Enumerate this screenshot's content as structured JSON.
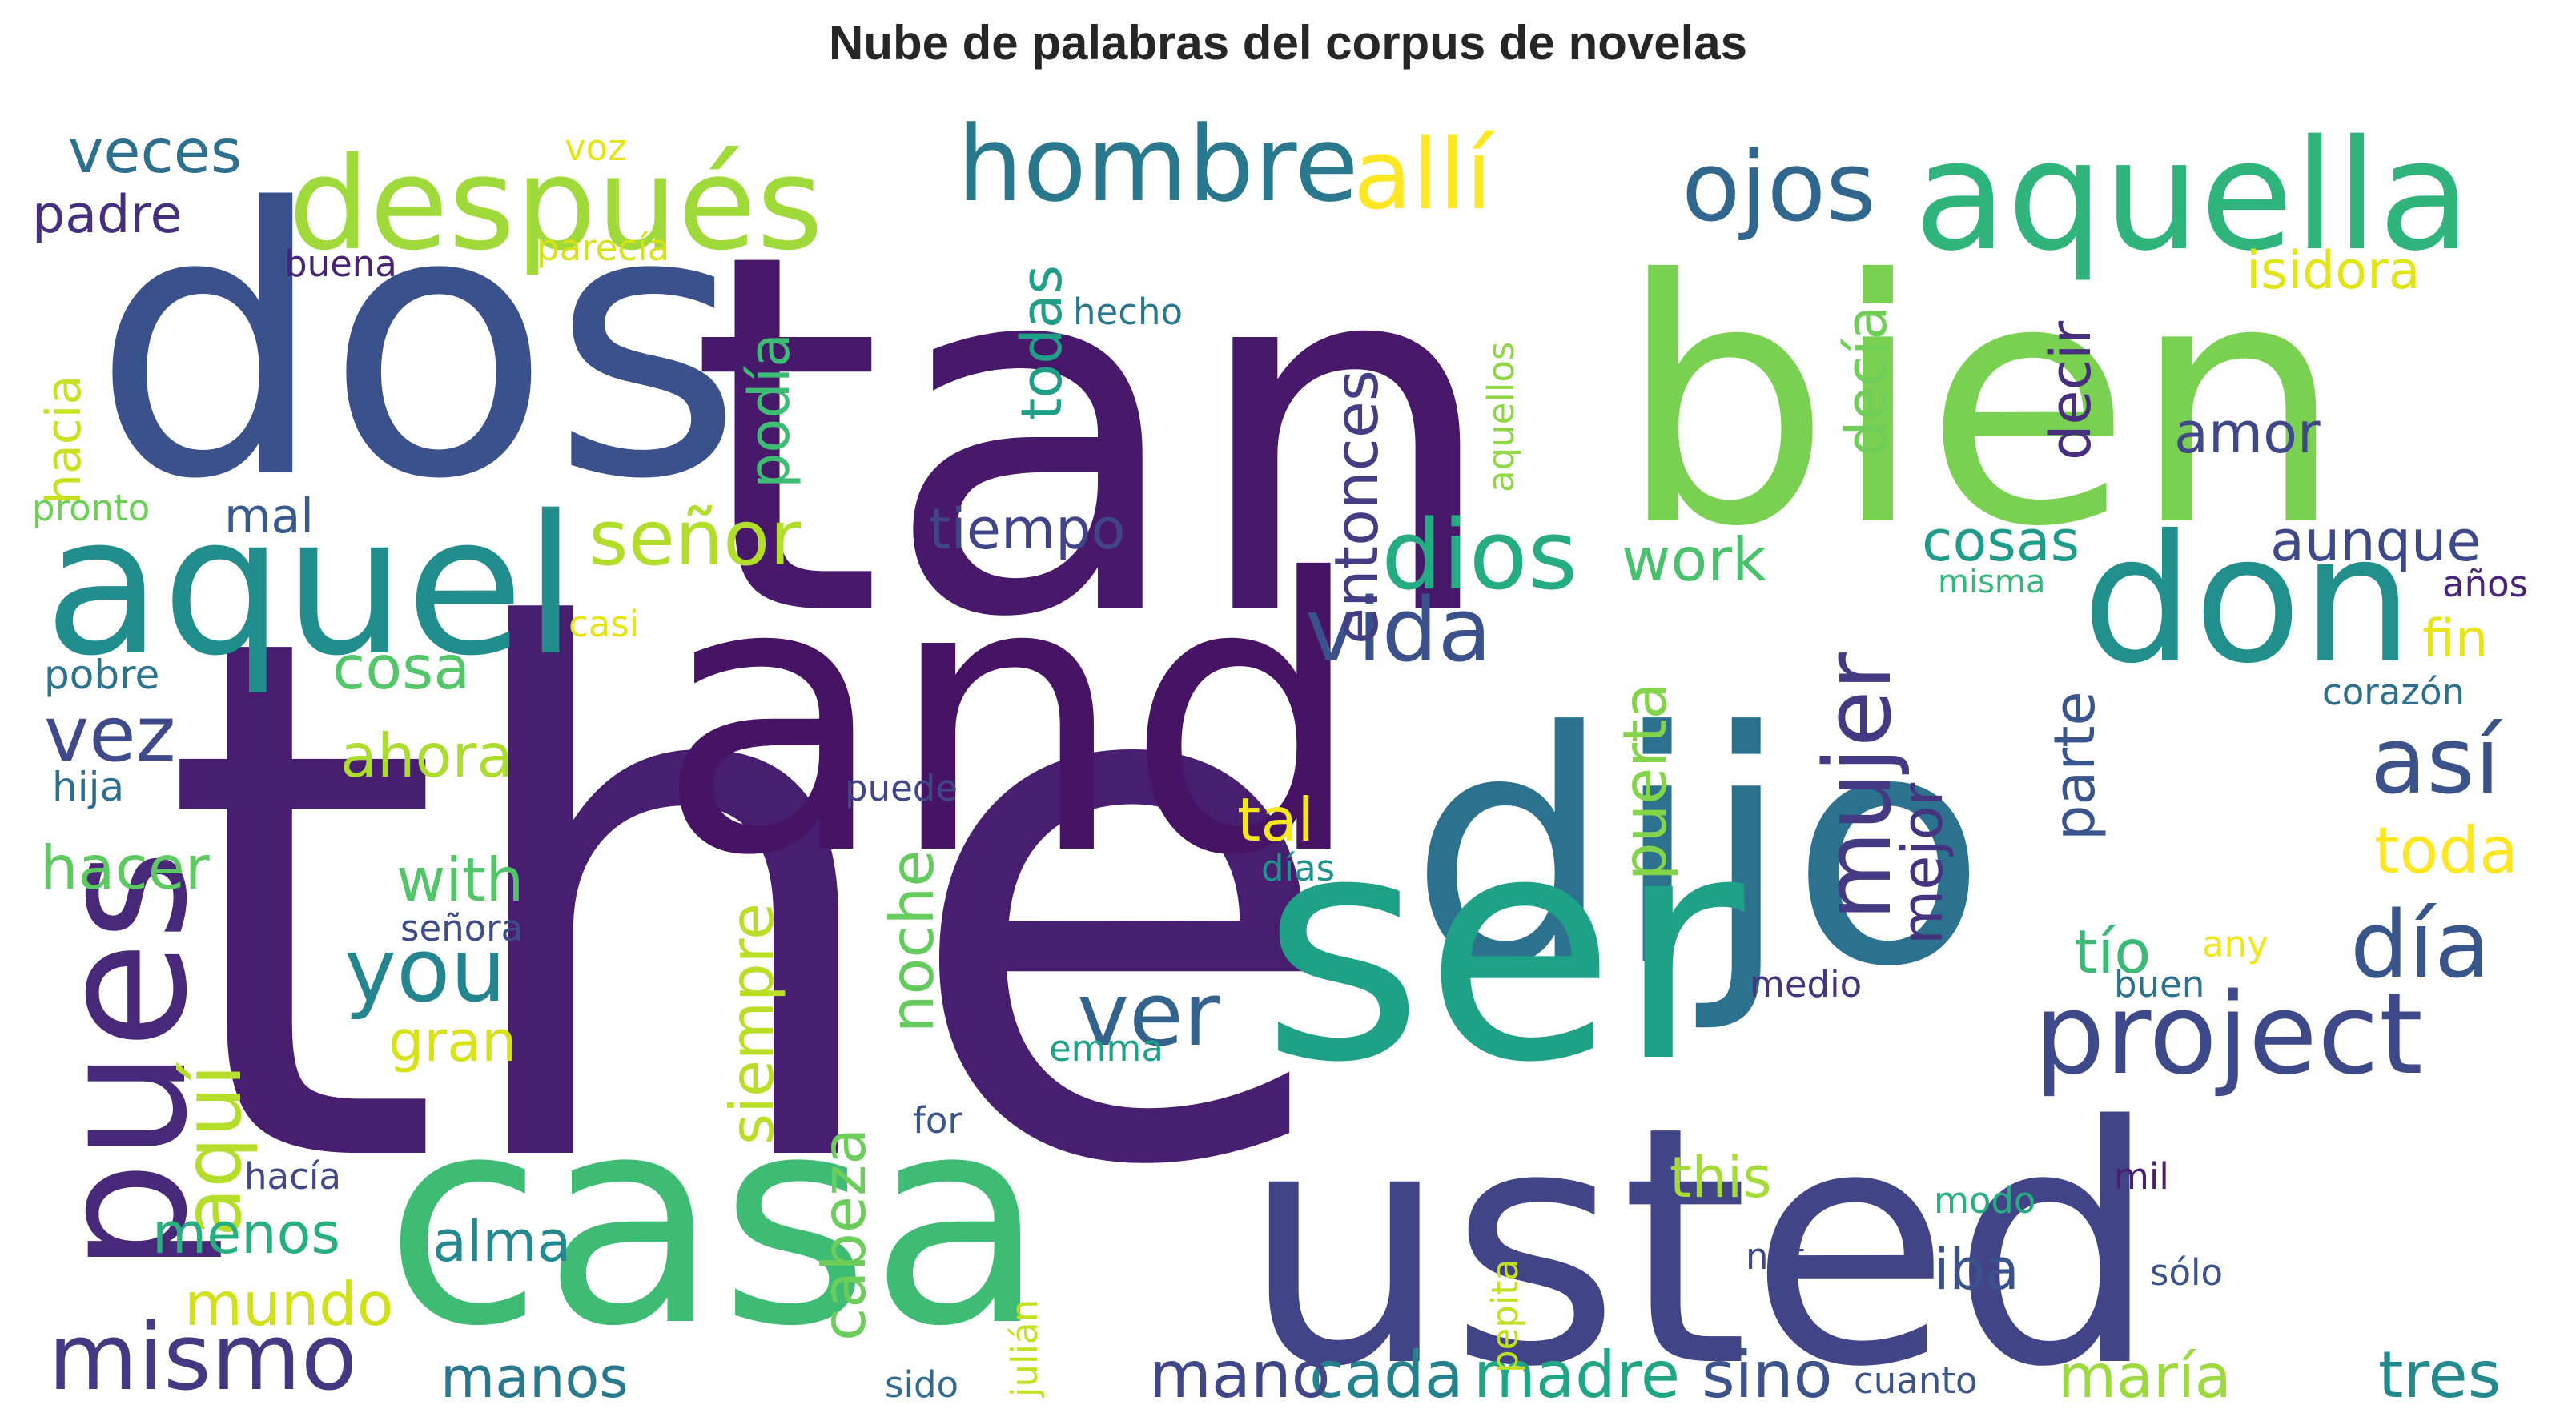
{
  "title": "Nube de palabras del corpus de novelas",
  "words": [
    {
      "text": "the",
      "color": "#481f70"
    },
    {
      "text": "tan",
      "color": "#48186a"
    },
    {
      "text": "dos",
      "color": "#3b518b"
    },
    {
      "text": "bien",
      "color": "#7ad151"
    },
    {
      "text": "and",
      "color": "#471365"
    },
    {
      "text": "dijo",
      "color": "#2c728e"
    },
    {
      "text": "usted",
      "color": "#414487"
    },
    {
      "text": "casa",
      "color": "#3fbc73"
    },
    {
      "text": "ser",
      "color": "#1fa187"
    },
    {
      "text": "aquel",
      "color": "#228d8d"
    },
    {
      "text": "aquella",
      "color": "#2fb47c"
    },
    {
      "text": "pues",
      "color": "#482878"
    },
    {
      "text": "don",
      "color": "#21908d"
    },
    {
      "text": "después",
      "color": "#9fda3a"
    },
    {
      "text": "project",
      "color": "#3e4989"
    },
    {
      "text": "hombre",
      "color": "#2a788e"
    },
    {
      "text": "ojos",
      "color": "#31668e"
    },
    {
      "text": "mujer",
      "color": "#443a83"
    },
    {
      "text": "allí",
      "color": "#fde725"
    },
    {
      "text": "día",
      "color": "#39568c"
    },
    {
      "text": "dios",
      "color": "#25ac82"
    },
    {
      "text": "vida",
      "color": "#3b518b"
    },
    {
      "text": "ver",
      "color": "#33638d"
    },
    {
      "text": "you",
      "color": "#25858e"
    },
    {
      "text": "mismo",
      "color": "#453882"
    },
    {
      "text": "así",
      "color": "#3b528b"
    },
    {
      "text": "aquí",
      "color": "#b5de2b"
    },
    {
      "text": "señor",
      "color": "#b2dd2d"
    },
    {
      "text": "vez",
      "color": "#3e4a89"
    },
    {
      "text": "cabeza",
      "color": "#6ccd5a"
    },
    {
      "text": "madre",
      "color": "#21a685"
    },
    {
      "text": "cada",
      "color": "#26818e"
    },
    {
      "text": "mano",
      "color": "#3f4788"
    },
    {
      "text": "sino",
      "color": "#3b528b"
    },
    {
      "text": "tres",
      "color": "#238a8d"
    },
    {
      "text": "maría",
      "color": "#9bd93c"
    },
    {
      "text": "entonces",
      "color": "#433d84"
    },
    {
      "text": "puerta",
      "color": "#84d44b"
    },
    {
      "text": "noche",
      "color": "#65cb5e"
    },
    {
      "text": "siempre",
      "color": "#bade28"
    },
    {
      "text": "mejor",
      "color": "#46337f"
    },
    {
      "text": "parte",
      "color": "#3a548c"
    },
    {
      "text": "tío",
      "color": "#3aba76"
    },
    {
      "text": "toda",
      "color": "#fde725"
    },
    {
      "text": "tal",
      "color": "#f6e620"
    },
    {
      "text": "amor",
      "color": "#3f4889"
    },
    {
      "text": "decía",
      "color": "#6ece58"
    },
    {
      "text": "decir",
      "color": "#472f7d"
    },
    {
      "text": "aunque",
      "color": "#3e4989"
    },
    {
      "text": "cosas",
      "color": "#1e9c89"
    },
    {
      "text": "tiempo",
      "color": "#414487"
    },
    {
      "text": "podía",
      "color": "#3dbc74"
    },
    {
      "text": "todas",
      "color": "#1f9f88"
    },
    {
      "text": "work",
      "color": "#4ac16d"
    },
    {
      "text": "ahora",
      "color": "#addc30"
    },
    {
      "text": "cosa",
      "color": "#54c568"
    },
    {
      "text": "with",
      "color": "#52c569"
    },
    {
      "text": "gran",
      "color": "#d8e219"
    },
    {
      "text": "hacer",
      "color": "#5ec962"
    },
    {
      "text": "menos",
      "color": "#29af7f"
    },
    {
      "text": "mundo",
      "color": "#d0e11c"
    },
    {
      "text": "alma",
      "color": "#23898e"
    },
    {
      "text": "manos",
      "color": "#2a788e"
    },
    {
      "text": "iba",
      "color": "#3b528b"
    },
    {
      "text": "this",
      "color": "#a5db36"
    },
    {
      "text": "fin",
      "color": "#e7e419"
    },
    {
      "text": "isidora",
      "color": "#e2e418"
    },
    {
      "text": "padre",
      "color": "#46307e"
    },
    {
      "text": "veces",
      "color": "#2d708e"
    },
    {
      "text": "hacia",
      "color": "#c8e020"
    },
    {
      "text": "mal",
      "color": "#38598c"
    },
    {
      "text": "pobre",
      "color": "#2c738e"
    },
    {
      "text": "hija",
      "color": "#2e6e8e"
    },
    {
      "text": "pronto",
      "color": "#6ece58"
    },
    {
      "text": "hecho",
      "color": "#2a788e"
    },
    {
      "text": "aquellos",
      "color": "#8fd744"
    },
    {
      "text": "parecía",
      "color": "#d5e21a"
    },
    {
      "text": "buena",
      "color": "#482475"
    },
    {
      "text": "voz",
      "color": "#e5e419"
    },
    {
      "text": "casi",
      "color": "#e5e419"
    },
    {
      "text": "misma",
      "color": "#35b779"
    },
    {
      "text": "años",
      "color": "#482677"
    },
    {
      "text": "corazón",
      "color": "#2e6f8e"
    },
    {
      "text": "puede",
      "color": "#404688"
    },
    {
      "text": "días",
      "color": "#20938c"
    },
    {
      "text": "señora",
      "color": "#3e4c8a"
    },
    {
      "text": "any",
      "color": "#f1e51d"
    },
    {
      "text": "medio",
      "color": "#453581"
    },
    {
      "text": "buen",
      "color": "#2d718e"
    },
    {
      "text": "emma",
      "color": "#1fa088"
    },
    {
      "text": "for",
      "color": "#3a548c"
    },
    {
      "text": "hacía",
      "color": "#3f4788"
    },
    {
      "text": "pepita",
      "color": "#c2df23"
    },
    {
      "text": "julián",
      "color": "#c5e021"
    },
    {
      "text": "modo",
      "color": "#27ad81"
    },
    {
      "text": "mil",
      "color": "#482071"
    },
    {
      "text": "not",
      "color": "#3f4788"
    },
    {
      "text": "sólo",
      "color": "#3b528b"
    },
    {
      "text": "sido",
      "color": "#31688e"
    },
    {
      "text": "cuanto",
      "color": "#3b528b"
    }
  ]
}
